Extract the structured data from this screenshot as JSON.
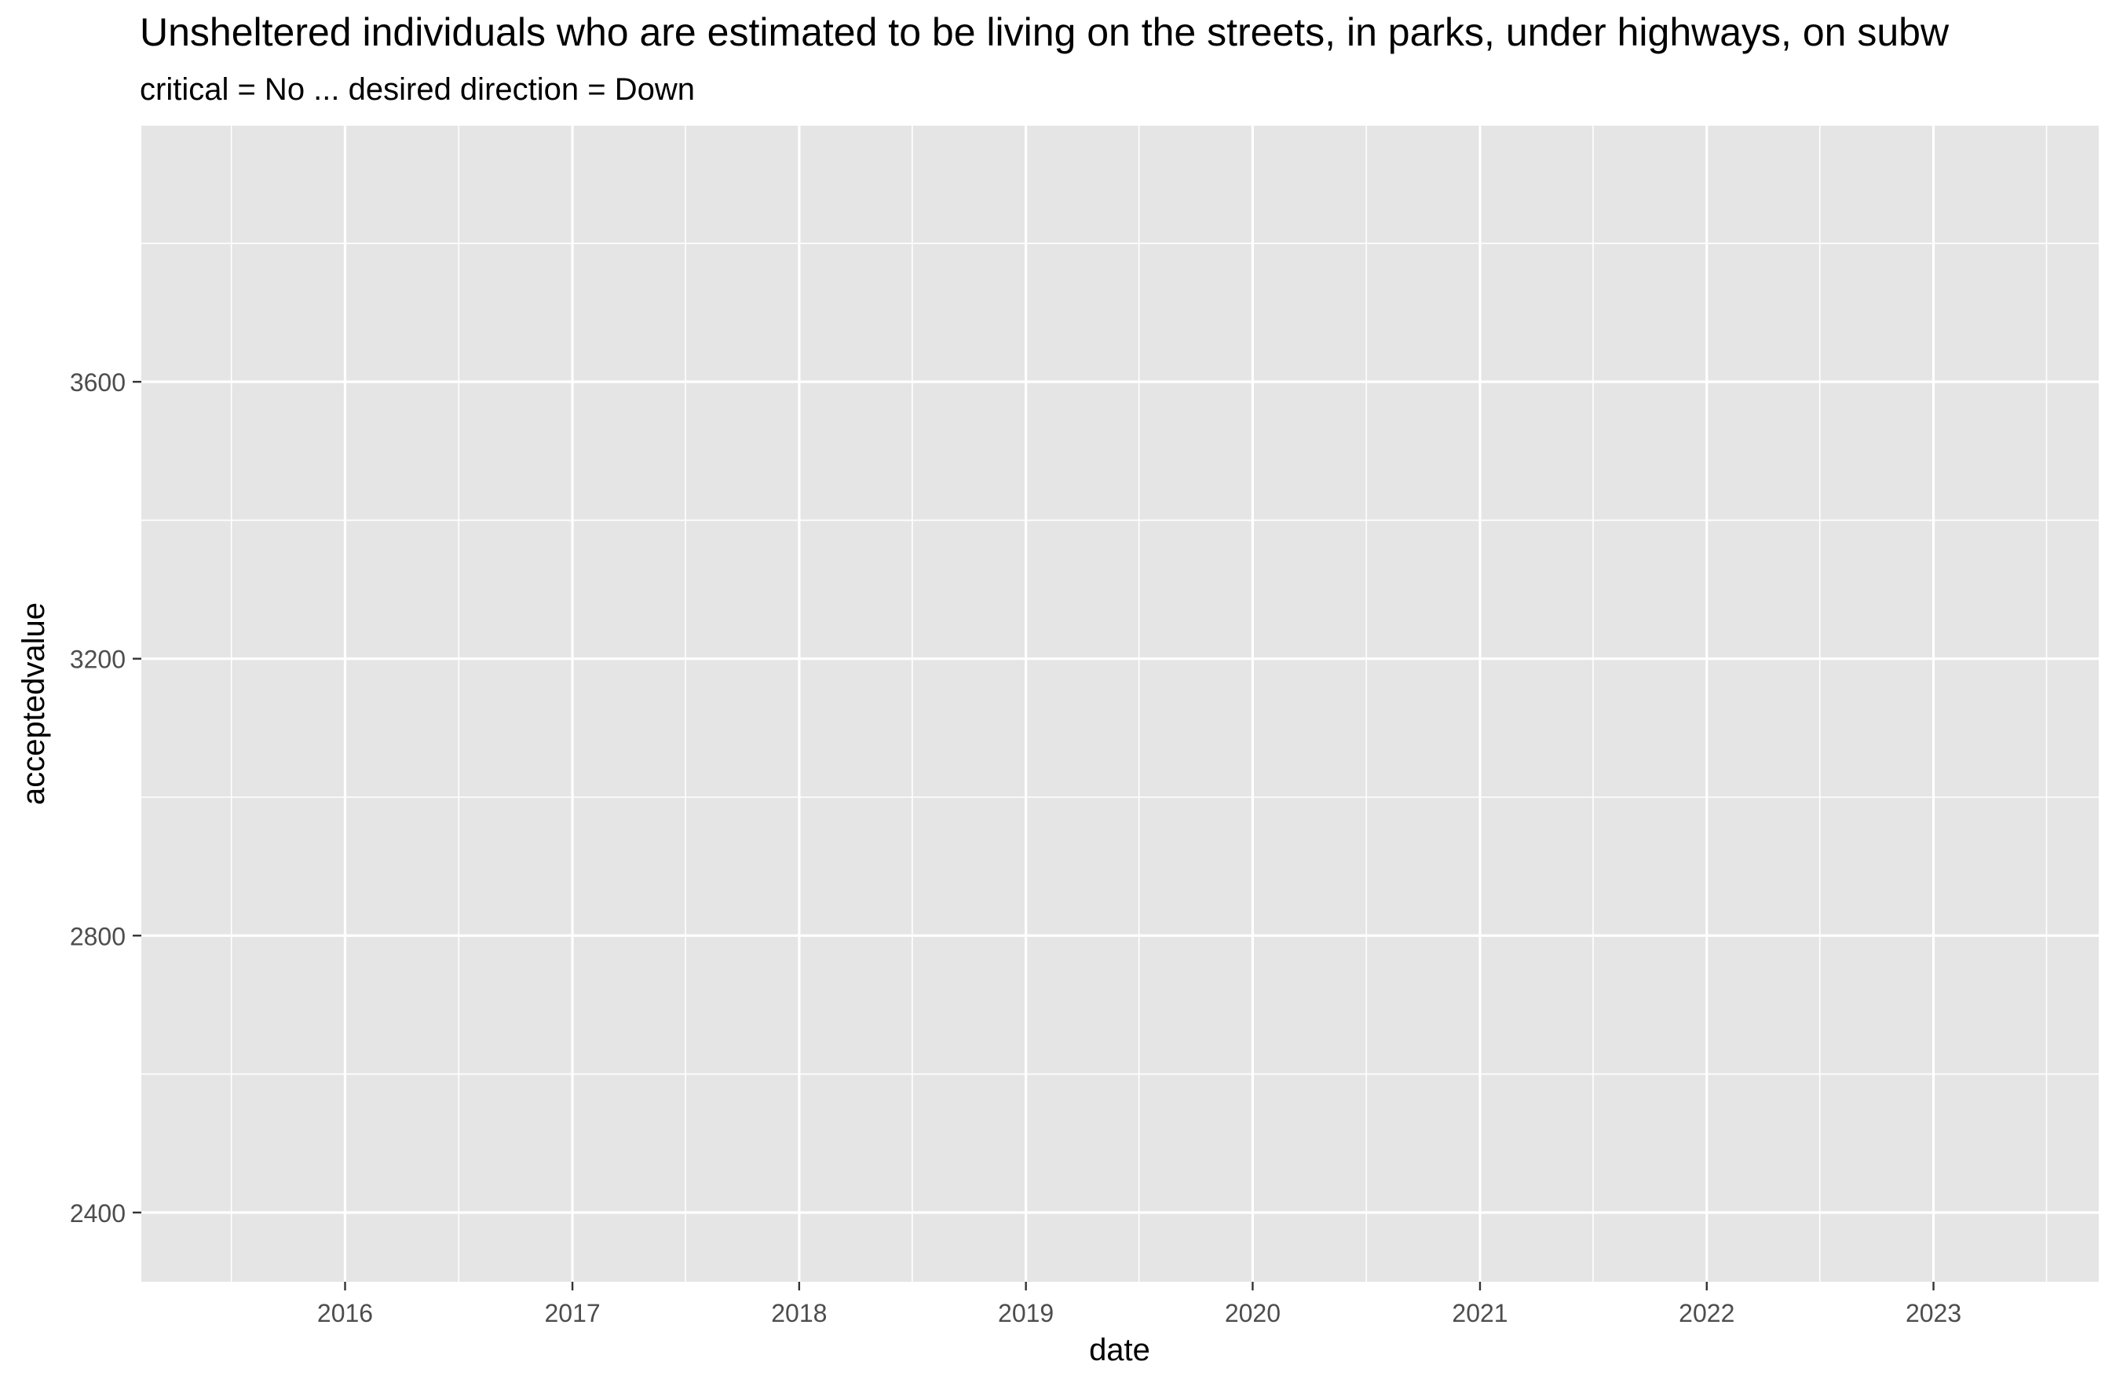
{
  "chart_data": {
    "type": "line",
    "title": "Unsheltered individuals who are estimated to be living on the streets, in parks, under highways, on subw",
    "subtitle": "critical = No ... desired direction = Down",
    "xlabel": "date",
    "ylabel": "acceptedvalue",
    "x_ticks": [
      "2016",
      "2017",
      "2018",
      "2019",
      "2020",
      "2021",
      "2022",
      "2023"
    ],
    "y_ticks": [
      "2400",
      "2800",
      "3200",
      "3600"
    ],
    "xlim": [
      "2015-02-07",
      "2023-09-24"
    ],
    "ylim": [
      2300,
      3970
    ],
    "grid": true,
    "panel_background": "#e5e5e5",
    "grid_color": "#ffffff",
    "series": []
  }
}
